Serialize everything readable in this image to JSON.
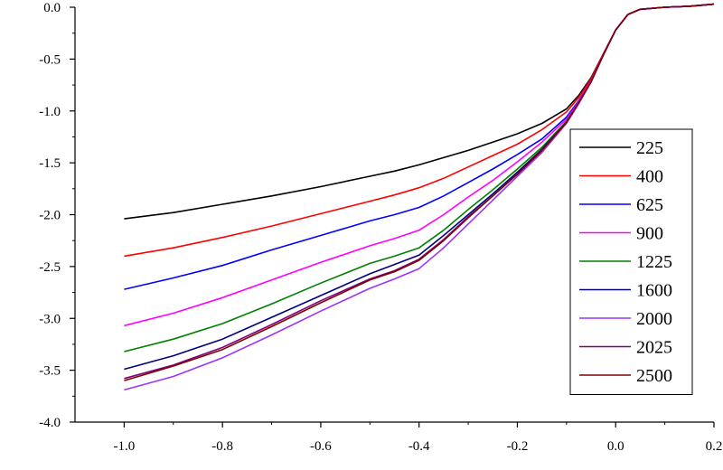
{
  "chart_data": {
    "type": "line",
    "title": "",
    "xlabel": "",
    "ylabel": "",
    "xlim": [
      -1.1,
      0.2
    ],
    "ylim": [
      -4.0,
      0.0
    ],
    "x_ticks": [
      -1.0,
      -0.8,
      -0.6,
      -0.4,
      -0.2,
      0.0,
      0.2
    ],
    "x_tick_labels": [
      "-1.0",
      "-0.8",
      "-0.6",
      "-0.4",
      "-0.2",
      "0.0",
      "0.2"
    ],
    "y_ticks": [
      0.0,
      -0.5,
      -1.0,
      -1.5,
      -2.0,
      -2.5,
      -3.0,
      -3.5,
      -4.0
    ],
    "y_tick_labels": [
      "0.0",
      "-0.5",
      "-1.0",
      "-1.5",
      "-2.0",
      "-2.5",
      "-3.0",
      "-3.5",
      "-4.0"
    ],
    "grid": false,
    "legend_position": "right",
    "x": [
      -1.0,
      -0.9,
      -0.8,
      -0.7,
      -0.6,
      -0.5,
      -0.45,
      -0.4,
      -0.35,
      -0.3,
      -0.25,
      -0.2,
      -0.15,
      -0.1,
      -0.075,
      -0.05,
      -0.025,
      0.0,
      0.025,
      0.05,
      0.1,
      0.15,
      0.2
    ],
    "series": [
      {
        "name": "225",
        "color": "#000000",
        "values": [
          -2.04,
          -1.98,
          -1.9,
          -1.82,
          -1.73,
          -1.63,
          -1.58,
          -1.52,
          -1.45,
          -1.38,
          -1.3,
          -1.22,
          -1.12,
          -0.98,
          -0.85,
          -0.68,
          -0.45,
          -0.22,
          -0.07,
          -0.02,
          0.0,
          0.01,
          0.03
        ]
      },
      {
        "name": "400",
        "color": "#ff0000",
        "values": [
          -2.4,
          -2.32,
          -2.22,
          -2.11,
          -1.99,
          -1.87,
          -1.81,
          -1.74,
          -1.65,
          -1.54,
          -1.43,
          -1.32,
          -1.18,
          -1.01,
          -0.87,
          -0.69,
          -0.45,
          -0.22,
          -0.07,
          -0.02,
          0.0,
          0.01,
          0.03
        ]
      },
      {
        "name": "625",
        "color": "#0000ff",
        "values": [
          -2.72,
          -2.61,
          -2.49,
          -2.34,
          -2.2,
          -2.06,
          -2.0,
          -1.93,
          -1.82,
          -1.69,
          -1.56,
          -1.42,
          -1.27,
          -1.06,
          -0.9,
          -0.71,
          -0.46,
          -0.22,
          -0.07,
          -0.02,
          0.0,
          0.01,
          0.03
        ]
      },
      {
        "name": "900",
        "color": "#ff00ff",
        "values": [
          -3.07,
          -2.95,
          -2.8,
          -2.63,
          -2.46,
          -2.3,
          -2.23,
          -2.15,
          -2.0,
          -1.83,
          -1.67,
          -1.49,
          -1.3,
          -1.08,
          -0.91,
          -0.71,
          -0.46,
          -0.22,
          -0.07,
          -0.02,
          0.0,
          0.01,
          0.03
        ]
      },
      {
        "name": "1225",
        "color": "#008000",
        "values": [
          -3.32,
          -3.2,
          -3.05,
          -2.86,
          -2.66,
          -2.47,
          -2.4,
          -2.32,
          -2.15,
          -1.95,
          -1.76,
          -1.56,
          -1.35,
          -1.1,
          -0.92,
          -0.72,
          -0.46,
          -0.22,
          -0.07,
          -0.02,
          0.0,
          0.01,
          0.03
        ]
      },
      {
        "name": "1600",
        "color": "#000080",
        "values": [
          -3.49,
          -3.36,
          -3.2,
          -2.99,
          -2.78,
          -2.57,
          -2.48,
          -2.39,
          -2.2,
          -2.0,
          -1.8,
          -1.59,
          -1.37,
          -1.11,
          -0.92,
          -0.72,
          -0.46,
          -0.22,
          -0.07,
          -0.02,
          0.0,
          0.01,
          0.03
        ]
      },
      {
        "name": "2000",
        "color": "#9933ff",
        "values": [
          -3.69,
          -3.56,
          -3.38,
          -3.16,
          -2.93,
          -2.71,
          -2.62,
          -2.52,
          -2.32,
          -2.09,
          -1.86,
          -1.63,
          -1.4,
          -1.12,
          -0.93,
          -0.72,
          -0.46,
          -0.22,
          -0.07,
          -0.02,
          0.0,
          0.01,
          0.03
        ]
      },
      {
        "name": "2025",
        "color": "#800080",
        "values": [
          -3.58,
          -3.45,
          -3.28,
          -3.06,
          -2.83,
          -2.62,
          -2.54,
          -2.43,
          -2.24,
          -2.02,
          -1.82,
          -1.61,
          -1.38,
          -1.11,
          -0.92,
          -0.72,
          -0.46,
          -0.22,
          -0.07,
          -0.02,
          0.0,
          0.01,
          0.03
        ]
      },
      {
        "name": "2500",
        "color": "#800000",
        "values": [
          -3.6,
          -3.46,
          -3.3,
          -3.08,
          -2.85,
          -2.63,
          -2.55,
          -2.44,
          -2.25,
          -2.03,
          -1.82,
          -1.61,
          -1.38,
          -1.11,
          -0.92,
          -0.72,
          -0.46,
          -0.22,
          -0.07,
          -0.02,
          0.0,
          0.01,
          0.03
        ]
      }
    ]
  }
}
